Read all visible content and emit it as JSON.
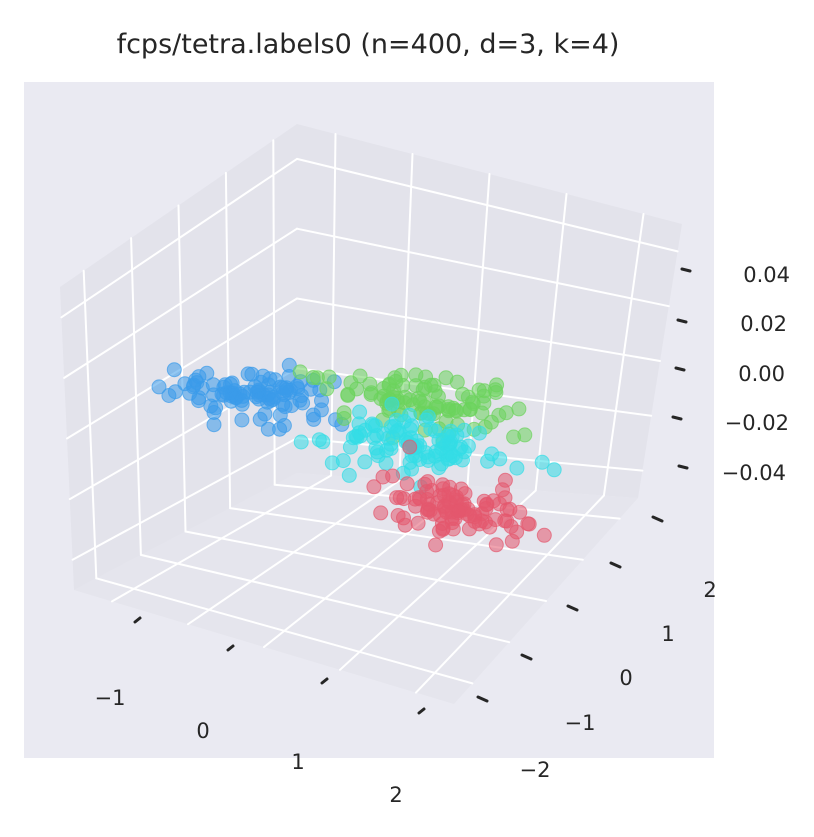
{
  "chart_data": {
    "type": "scatter",
    "projection": "3d",
    "title": "fcps/tetra.labels0 (n=400, d=3, k=4)",
    "xlabel": "",
    "ylabel": "",
    "zlabel": "",
    "x_ticks": [
      "−1",
      "0",
      "1",
      "2"
    ],
    "y_ticks": [
      "−2",
      "−1",
      "0",
      "1",
      "2"
    ],
    "z_ticks": [
      "−0.04",
      "−0.02",
      "0.00",
      "0.02",
      "0.04"
    ],
    "xlim": [
      -2,
      2.6
    ],
    "ylim": [
      -2.6,
      2.4
    ],
    "zlim": [
      -0.05,
      0.05
    ],
    "grid": true,
    "legend": "none",
    "background": "#eaeaf2",
    "alpha": 0.55,
    "series": [
      {
        "color": "#3a9bea",
        "n": 100,
        "x_center": -1.6,
        "y_center": 0.6,
        "spread": 0.45
      },
      {
        "color": "#6cd35c",
        "n": 100,
        "x_center": -0.2,
        "y_center": 1.8,
        "spread": 0.45
      },
      {
        "color": "#33dde6",
        "n": 100,
        "x_center": 0.4,
        "y_center": 0.6,
        "spread": 0.45
      },
      {
        "color": "#e4586d",
        "n": 100,
        "x_center": 1.6,
        "y_center": -0.8,
        "spread": 0.45
      }
    ]
  }
}
